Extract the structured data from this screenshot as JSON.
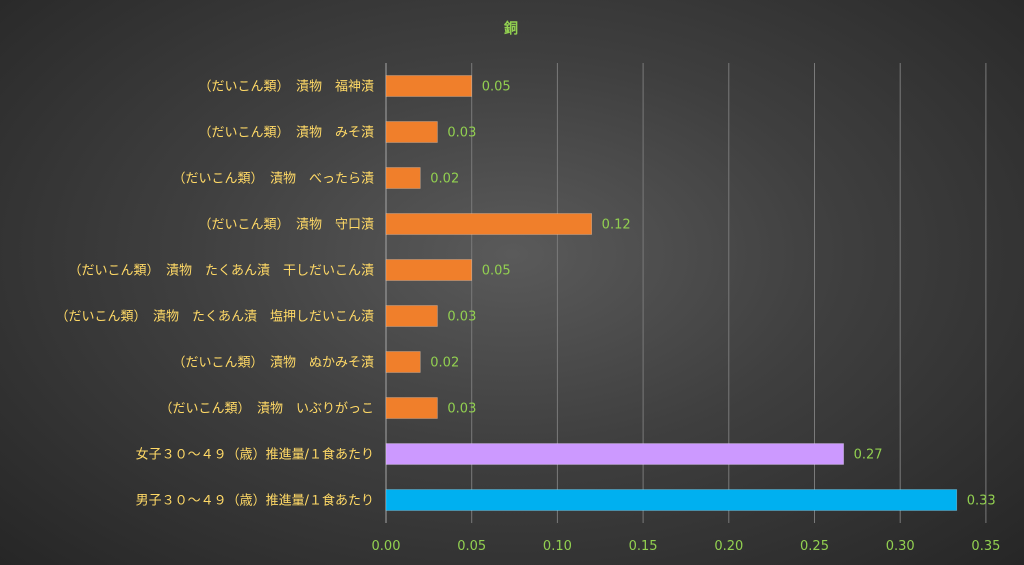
{
  "chart_data": {
    "type": "bar",
    "orientation": "horizontal",
    "title": "銅",
    "categories": [
      "（だいこん類）　漬物　福神漬",
      "（だいこん類）　漬物　みそ漬",
      "（だいこん類）　漬物　べったら漬",
      "（だいこん類）　漬物　守口漬",
      "（だいこん類）　漬物　たくあん漬　干しだいこん漬",
      "（だいこん類）　漬物　たくあん漬　塩押しだいこん漬",
      "（だいこん類）　漬物　ぬかみそ漬",
      "（だいこん類）　漬物　いぶりがっこ",
      "女子３０～４９（歳）推進量/１食あたり",
      "男子３０～４９（歳）推進量/１食あたり"
    ],
    "values": [
      0.05,
      0.03,
      0.02,
      0.12,
      0.05,
      0.03,
      0.02,
      0.03,
      0.267,
      0.333
    ],
    "data_labels": [
      "0.05",
      "0.03",
      "0.02",
      "0.12",
      "0.05",
      "0.03",
      "0.02",
      "0.03",
      "0.27",
      "0.33"
    ],
    "bar_colors": [
      "#F07F2B",
      "#F07F2B",
      "#F07F2B",
      "#F07F2B",
      "#F07F2B",
      "#F07F2B",
      "#F07F2B",
      "#F07F2B",
      "#CC99FF",
      "#00B0F0"
    ],
    "xlim": [
      0,
      0.35
    ],
    "xticks": [
      0,
      0.05,
      0.1,
      0.15,
      0.2,
      0.25,
      0.3,
      0.35
    ],
    "xtick_labels": [
      "0.00",
      "0.05",
      "0.10",
      "0.15",
      "0.20",
      "0.25",
      "0.30",
      "0.35"
    ],
    "grid": "vertical",
    "legend": "none",
    "colors": {
      "title": "#92D050",
      "category_label": "#FFD966",
      "value_label": "#92D050",
      "tick_label": "#92D050",
      "gridline": "#7a7a7a",
      "axis": "#a6a6a6"
    }
  }
}
